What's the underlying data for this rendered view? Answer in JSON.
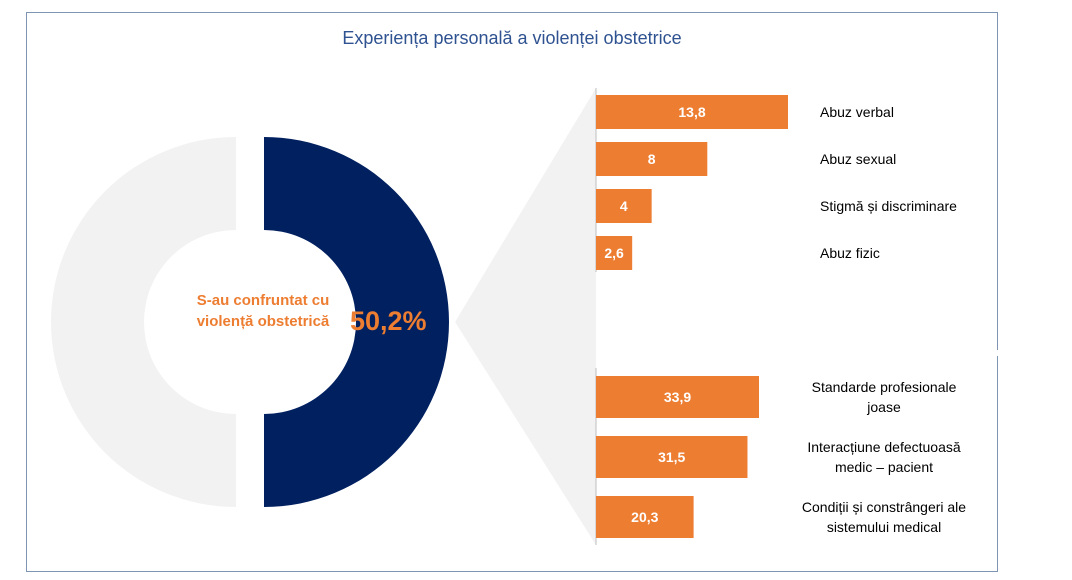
{
  "chart_data": {
    "title": "Experiența personală a violenței obstetrice",
    "donut": {
      "type": "pie",
      "label": "S-au confruntat cu violență obstetrică",
      "value_label": "50,2%",
      "value": 50.2,
      "colors": {
        "highlight": "#002060",
        "rest": "#f2f2f2"
      }
    },
    "bar_groups": [
      {
        "type": "bar",
        "orientation": "horizontal",
        "categories": [
          "Abuz verbal",
          "Abuz sexual",
          "Stigmă și discriminare",
          "Abuz fizic"
        ],
        "values": [
          13.8,
          8,
          4,
          2.6
        ],
        "value_labels": [
          "13,8",
          "8",
          "4",
          "2,6"
        ],
        "xlim": [
          0,
          13.8
        ]
      },
      {
        "type": "bar",
        "orientation": "horizontal",
        "categories": [
          [
            "Standarde profesionale",
            "joase"
          ],
          [
            "Interacțiune defectuoasă",
            "medic – pacient"
          ],
          [
            "Condiții și constrângeri ale",
            "sistemului medical"
          ]
        ],
        "values": [
          33.9,
          31.5,
          20.3
        ],
        "value_labels": [
          "33,9",
          "31,5",
          "20,3"
        ],
        "xlim": [
          0,
          33.9
        ]
      }
    ],
    "colors": {
      "bar": "#ed7d31",
      "bar_text": "#ffffff",
      "wedge": "#f2f2f2",
      "axis": "#bfbfbf"
    }
  }
}
